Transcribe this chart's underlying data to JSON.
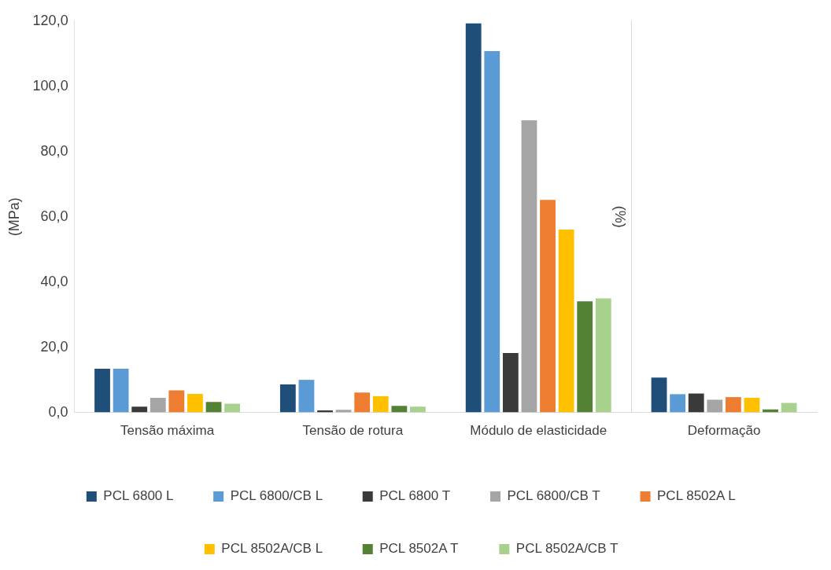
{
  "chart_data": {
    "type": "bar",
    "ylabel": "(MPa)",
    "y2label": "(%)",
    "categories": [
      "Tensão máxima",
      "Tensão de rotura",
      "Módulo de elasticidade",
      "Deformação"
    ],
    "series": [
      {
        "name": "PCL 6800 L",
        "color": "#1f4e79",
        "values": [
          13.4,
          8.6,
          119.3,
          10.7
        ]
      },
      {
        "name": "PCL 6800/CB L",
        "color": "#5b9bd5",
        "values": [
          13.4,
          10.0,
          110.8,
          5.6
        ]
      },
      {
        "name": "PCL 6800 T",
        "color": "#3a3a3a",
        "values": [
          1.8,
          0.6,
          18.2,
          5.8
        ]
      },
      {
        "name": "PCL 6800/CB T",
        "color": "#a5a5a5",
        "values": [
          4.5,
          0.8,
          89.6,
          3.9
        ]
      },
      {
        "name": "PCL 8502A L",
        "color": "#ed7d31",
        "values": [
          6.8,
          6.1,
          65.2,
          4.7
        ]
      },
      {
        "name": "PCL 8502A/CB L",
        "color": "#ffc000",
        "values": [
          5.7,
          5.0,
          56.1,
          4.5
        ]
      },
      {
        "name": "PCL 8502A T",
        "color": "#548235",
        "values": [
          3.2,
          2.0,
          34.1,
          0.9
        ]
      },
      {
        "name": "PCL 8502A/CB T",
        "color": "#a9d18e",
        "values": [
          2.7,
          1.8,
          35.0,
          2.9
        ]
      }
    ],
    "ylim": [
      0,
      120
    ],
    "yticks": [
      {
        "value": 0,
        "label": "0,0"
      },
      {
        "value": 20,
        "label": "20,0"
      },
      {
        "value": 40,
        "label": "40,0"
      },
      {
        "value": 60,
        "label": "60,0"
      },
      {
        "value": 80,
        "label": "80,0"
      },
      {
        "value": 100,
        "label": "100,0"
      },
      {
        "value": 120,
        "label": "120,0"
      }
    ],
    "grid": false,
    "legend": "bottom"
  }
}
